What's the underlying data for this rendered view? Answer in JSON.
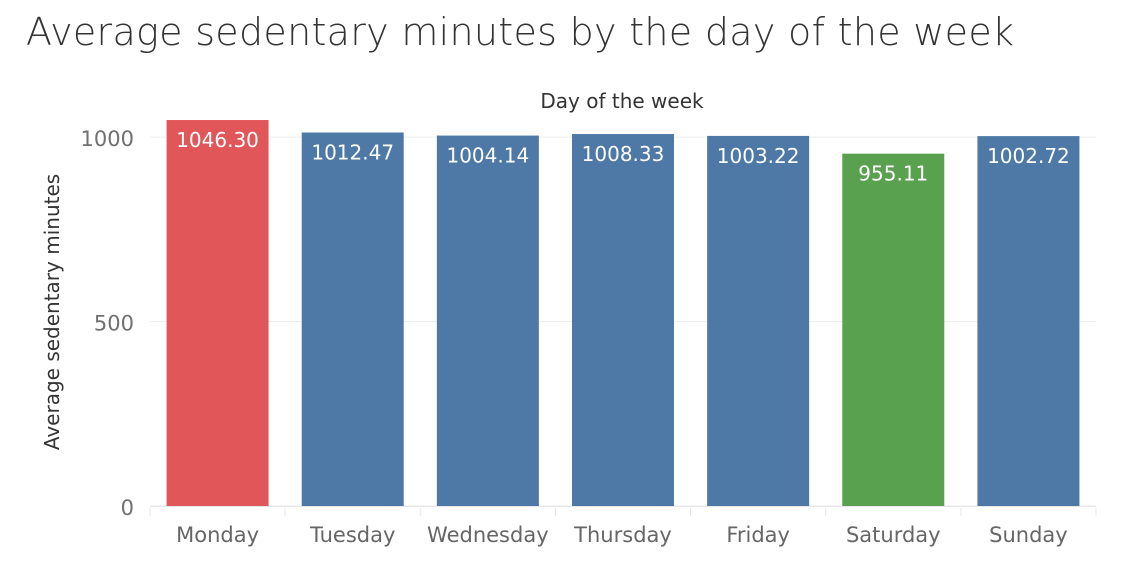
{
  "chart_data": {
    "type": "bar",
    "title": "Average sedentary minutes by the day of the week",
    "xlabel": "Day of the week",
    "ylabel": "Average sedentary minutes",
    "categories": [
      "Monday",
      "Tuesday",
      "Wednesday",
      "Thursday",
      "Friday",
      "Saturday",
      "Sunday"
    ],
    "values": [
      1046.3,
      1012.47,
      1004.14,
      1008.33,
      1003.22,
      955.11,
      1002.72
    ],
    "value_labels": [
      "1046.30",
      "1012.47",
      "1004.14",
      "1008.33",
      "1003.22",
      "955.11",
      "1002.72"
    ],
    "bar_colors": [
      "#e15759",
      "#4e79a7",
      "#4e79a7",
      "#4e79a7",
      "#4e79a7",
      "#59a14f",
      "#4e79a7"
    ],
    "yticks": [
      0,
      500,
      1000
    ],
    "ytick_labels": [
      "0",
      "500",
      "1000"
    ],
    "ylim": [
      0,
      1046.3
    ],
    "grid": true,
    "legend": "none",
    "xlabel_position": "top"
  }
}
